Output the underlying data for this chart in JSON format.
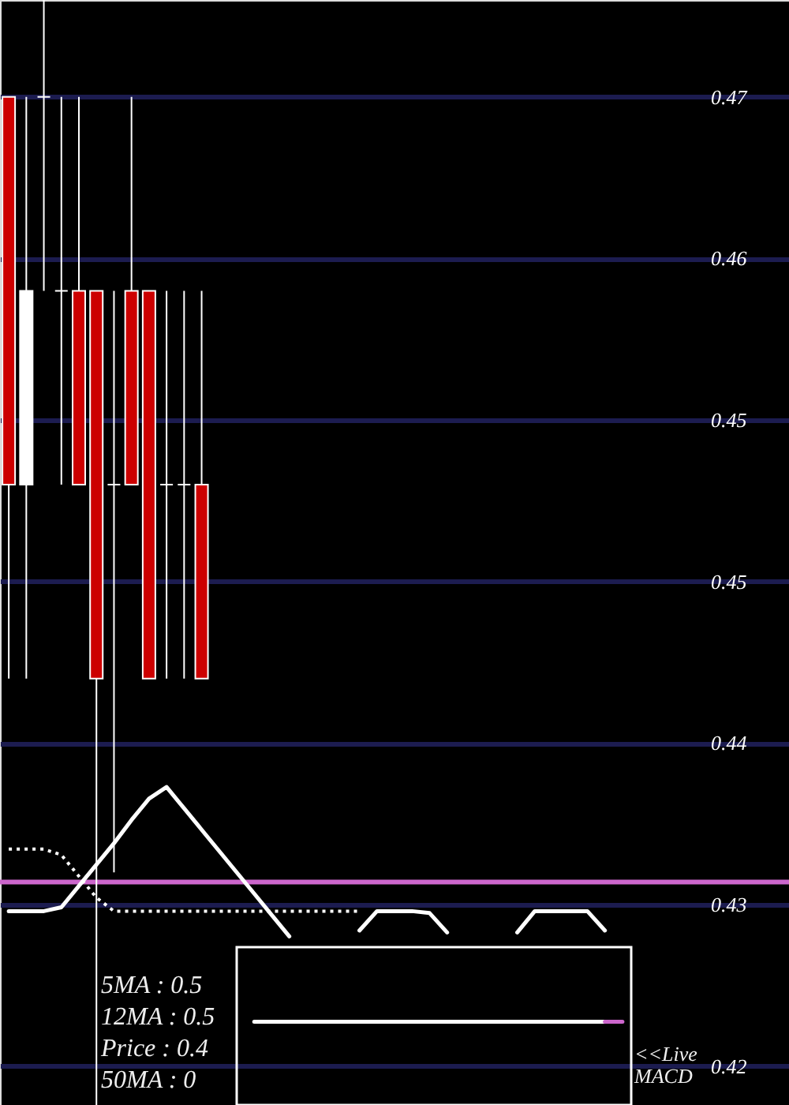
{
  "chart_data": {
    "type": "candlestick",
    "categories": [
      null,
      null,
      null,
      null,
      null,
      null,
      null,
      null,
      null,
      null,
      null,
      null,
      null,
      null,
      null,
      null,
      null,
      null,
      null,
      null,
      null,
      null,
      null,
      null,
      null,
      null,
      null,
      null,
      null,
      null,
      null,
      null,
      null,
      null,
      null,
      null,
      null,
      null,
      null,
      null,
      null,
      null,
      null,
      null,
      null
    ],
    "ohlc": [
      [
        0.47,
        0.47,
        0.44,
        0.45
      ],
      [
        0.45,
        0.47,
        0.44,
        0.46
      ],
      [
        0.47,
        0.475,
        0.46,
        0.47
      ],
      [
        0.46,
        0.47,
        0.45,
        0.46
      ],
      [
        0.46,
        0.47,
        0.45,
        0.45
      ],
      [
        0.46,
        0.46,
        0.418,
        0.44
      ],
      [
        0.45,
        0.46,
        0.43,
        0.45
      ],
      [
        0.46,
        0.47,
        0.45,
        0.45
      ],
      [
        0.46,
        0.46,
        0.44,
        0.44
      ],
      [
        0.45,
        0.46,
        0.44,
        0.45
      ],
      [
        0.45,
        0.46,
        0.44,
        0.45
      ],
      [
        0.45,
        0.46,
        0.44,
        0.44
      ],
      null,
      null,
      null,
      null,
      null,
      null,
      null,
      null,
      null,
      null,
      null,
      null,
      null,
      null,
      null,
      null,
      null,
      null,
      null,
      null,
      null,
      null,
      null,
      null,
      null,
      null,
      null,
      null,
      null,
      null,
      null,
      null,
      null
    ],
    "colors": [
      "#cc0000",
      "#ffffff",
      "#ffffff",
      "#ffffff",
      "#cc0000",
      "#cc0000",
      "#ffffff",
      "#cc0000",
      "#cc0000",
      "#ffffff",
      "#ffffff",
      "#cc0000",
      null,
      null,
      null,
      null,
      null,
      null,
      null,
      null,
      null,
      null,
      null,
      null,
      null,
      null,
      null,
      null,
      null,
      null,
      null,
      null,
      null,
      null,
      null,
      null,
      null,
      null,
      null,
      null,
      null,
      null,
      null,
      null,
      null
    ],
    "series": [
      {
        "type": "line",
        "color": "#ffffff",
        "values": [
          0.428,
          0.428,
          0.428,
          0.4282,
          0.4293,
          0.4304,
          0.4315,
          0.4327,
          0.4338,
          0.4344,
          0.4333,
          0.4322,
          0.4311,
          0.43,
          0.4289,
          0.4278,
          0.4267,
          null,
          null,
          null,
          0.427,
          0.428,
          0.428,
          0.428,
          0.4279,
          0.4269,
          null,
          null,
          null,
          0.4269,
          0.428,
          0.428,
          0.428,
          0.428,
          0.427,
          null,
          null,
          null,
          null,
          null,
          null,
          null,
          null,
          null,
          null
        ]
      },
      {
        "type": "line",
        "color": "#ffffff",
        "line_style": "dotted",
        "values": [
          0.4312,
          0.4312,
          0.4312,
          0.4309,
          0.4298,
          0.4287,
          0.428,
          0.428,
          0.428,
          0.428,
          0.428,
          0.428,
          0.428,
          0.428,
          0.428,
          0.428,
          0.428,
          0.428,
          0.428,
          0.428,
          0.428,
          null,
          null,
          null,
          null,
          null,
          null,
          null,
          null,
          null,
          null,
          null,
          null,
          null,
          null,
          null,
          null,
          null,
          null,
          null,
          null,
          null,
          null,
          null,
          null
        ]
      },
      {
        "type": "line",
        "color": "#ffffff",
        "values": [
          null,
          null,
          null,
          null,
          null,
          null,
          null,
          null,
          null,
          null,
          null,
          null,
          null,
          null,
          0.4223,
          0.4223,
          0.4223,
          0.4223,
          0.4223,
          0.4223,
          0.4223,
          0.4223,
          0.4223,
          0.4223,
          0.4223,
          0.4223,
          0.4223,
          0.4223,
          0.4223,
          0.4223,
          0.4223,
          0.4223,
          0.4223,
          0.4223,
          0.4223,
          null,
          null,
          null,
          null,
          null,
          null,
          null,
          null,
          null,
          null
        ]
      },
      {
        "type": "line",
        "color": "#cc66cc",
        "values": [
          null,
          null,
          null,
          null,
          null,
          null,
          null,
          null,
          null,
          null,
          null,
          null,
          null,
          null,
          null,
          null,
          null,
          null,
          null,
          null,
          null,
          null,
          null,
          null,
          null,
          null,
          null,
          null,
          null,
          null,
          null,
          null,
          null,
          null,
          0.4223,
          0.4223,
          null,
          null,
          null,
          null,
          null,
          null,
          null,
          null,
          null
        ]
      }
    ],
    "ylim": [
      0.418,
      0.475
    ],
    "yticks": [
      0.42,
      {
        "value": 0.42833,
        "label": "0.43"
      },
      {
        "value": 0.43667,
        "label": "0.44"
      },
      {
        "value": 0.445,
        "label": "0.45"
      },
      {
        "value": 0.45333,
        "label": "0.45"
      },
      {
        "value": 0.46167,
        "label": "0.46"
      },
      0.47
    ],
    "grid": "y",
    "tick_labels": "y",
    "ref_lines": [
      {
        "axis": "y",
        "value": 0.4295,
        "color": "#cc66cc"
      }
    ],
    "annotations": [
      "5MA : 0.5",
      "12MA : 0.5",
      "Price   : 0.4",
      "50MA : 0",
      "<<Live MACD"
    ]
  }
}
